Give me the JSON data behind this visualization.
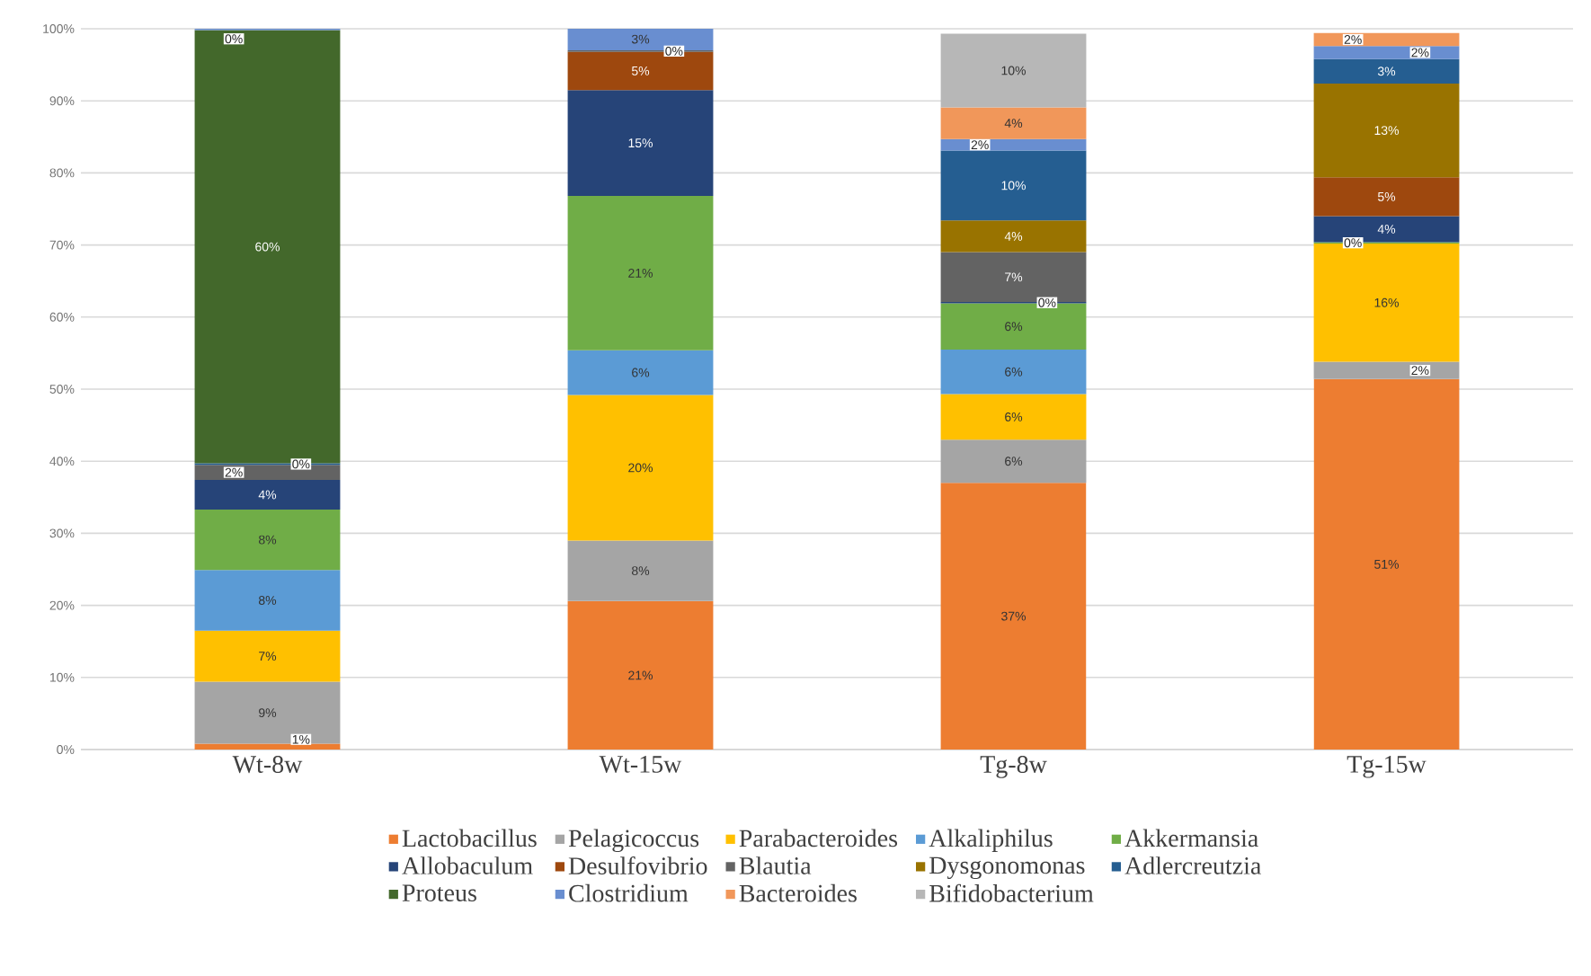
{
  "chart_data": {
    "type": "bar",
    "stacked": true,
    "categories": [
      "Wt-8w",
      "Wt-15w",
      "Tg-8w",
      "Tg-15w"
    ],
    "ylim": [
      0,
      100
    ],
    "yticks": [
      {
        "value": 0,
        "label": "0%"
      },
      {
        "value": 10,
        "label": "10%"
      },
      {
        "value": 20,
        "label": "20%"
      },
      {
        "value": 30,
        "label": "30%"
      },
      {
        "value": 40,
        "label": "40%"
      },
      {
        "value": 50,
        "label": "50%"
      },
      {
        "value": 60,
        "label": "60%"
      },
      {
        "value": 70,
        "label": "70%"
      },
      {
        "value": 80,
        "label": "80%"
      },
      {
        "value": 90,
        "label": "90%"
      },
      {
        "value": 100,
        "label": "100%"
      }
    ],
    "grid": "y",
    "legend": "bottom",
    "series": [
      {
        "name": "Lactobacillus",
        "color": "#ed7d31",
        "values": [
          0.8,
          20.6,
          37,
          51.4
        ],
        "value_labels": [
          "1%",
          "21%",
          "37%",
          "51%"
        ]
      },
      {
        "name": "Pelagicoccus",
        "color": "#a5a5a5",
        "values": [
          8.6,
          8.4,
          6,
          2.4
        ],
        "value_labels": [
          "9%",
          "8%",
          "6%",
          "2%"
        ]
      },
      {
        "name": "Parabacteroides",
        "color": "#ffc000",
        "values": [
          7.1,
          20.2,
          6.3,
          16.4
        ],
        "value_labels": [
          "7%",
          "20%",
          "6%",
          "16%"
        ]
      },
      {
        "name": "Alkaliphilus",
        "color": "#5b9bd5",
        "values": [
          8.4,
          6.2,
          6.2,
          null
        ],
        "value_labels": [
          "8%",
          "6%",
          "6%",
          null
        ]
      },
      {
        "name": "Akkermansia",
        "color": "#70ad47",
        "values": [
          8.4,
          21.4,
          6.4,
          0.2
        ],
        "value_labels": [
          "8%",
          "21%",
          "6%",
          "0%"
        ]
      },
      {
        "name": "Allobaculum",
        "color": "#264478",
        "values": [
          4.1,
          14.7,
          0.2,
          3.6
        ],
        "value_labels": [
          "4%",
          "15%",
          "0%",
          "4%"
        ]
      },
      {
        "name": "Desulfovibrio",
        "color": "#9e480e",
        "values": [
          null,
          5.3,
          null,
          5.4
        ],
        "value_labels": [
          null,
          "5%",
          null,
          "5%"
        ]
      },
      {
        "name": "Blautia",
        "color": "#636363",
        "values": [
          2.1,
          0.2,
          6.9,
          null
        ],
        "value_labels": [
          "2%",
          "0%",
          "7%",
          null
        ]
      },
      {
        "name": "Dysgonomonas",
        "color": "#997300",
        "values": [
          null,
          null,
          4.4,
          13
        ],
        "value_labels": [
          null,
          null,
          "4%",
          "13%"
        ]
      },
      {
        "name": "Adlercreutzia",
        "color": "#255e91",
        "values": [
          0.2,
          null,
          9.7,
          3.4
        ],
        "value_labels": [
          "0%",
          null,
          "10%",
          "3%"
        ]
      },
      {
        "name": "Proteus",
        "color": "#43682b",
        "values": [
          60.1,
          null,
          null,
          null
        ],
        "value_labels": [
          "60%",
          null,
          null,
          null
        ]
      },
      {
        "name": "Clostridium",
        "color": "#698ed0",
        "values": [
          0.2,
          3.1,
          1.6,
          1.8
        ],
        "value_labels": [
          "0%",
          "3%",
          "2%",
          "2%"
        ]
      },
      {
        "name": "Bacteroides",
        "color": "#f1975a",
        "values": [
          null,
          null,
          4.4,
          1.8
        ],
        "value_labels": [
          null,
          null,
          "4%",
          "2%"
        ]
      },
      {
        "name": "Bifidobacterium",
        "color": "#b7b7b7",
        "values": [
          null,
          null,
          10.2,
          null
        ],
        "value_labels": [
          null,
          null,
          "10%",
          null
        ]
      }
    ]
  }
}
